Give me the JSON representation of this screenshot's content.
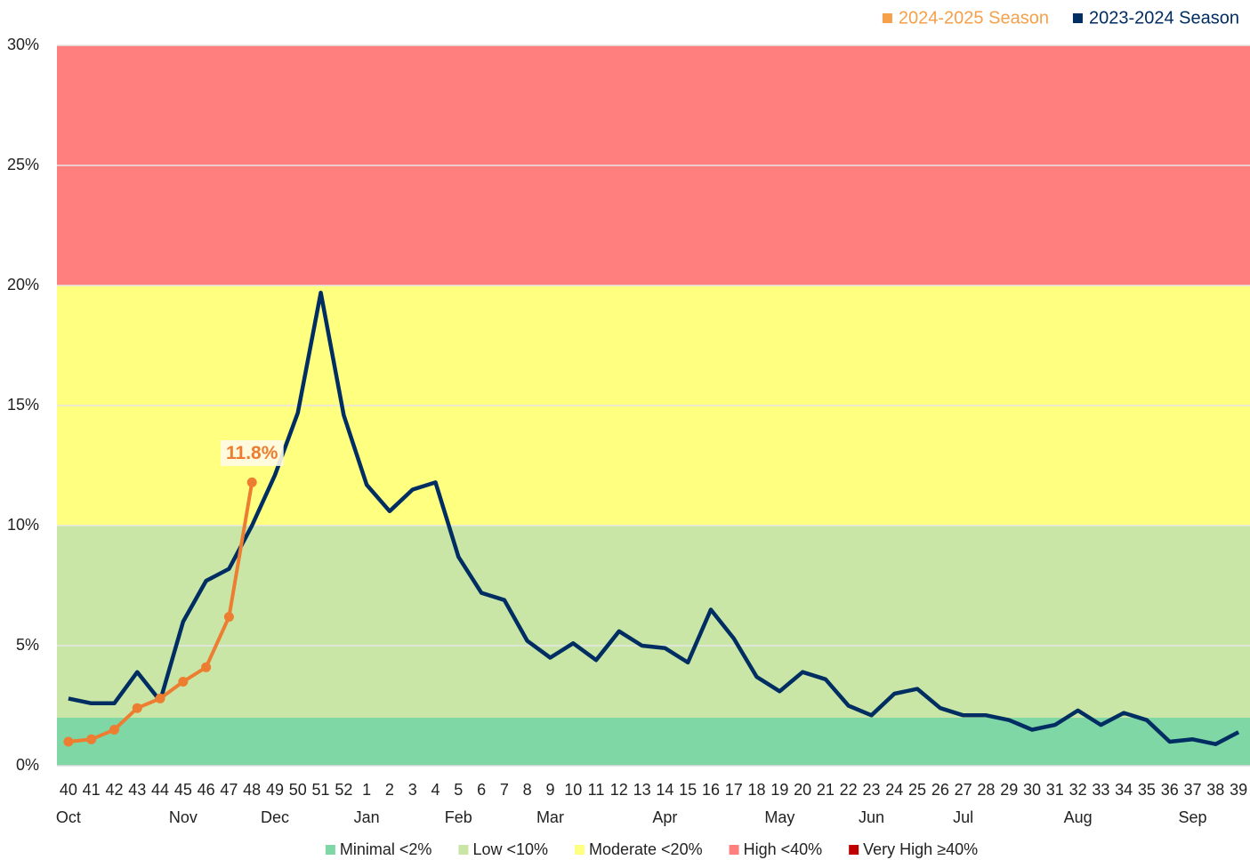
{
  "chart_data": {
    "type": "line",
    "categories": [
      "40",
      "41",
      "42",
      "43",
      "44",
      "45",
      "46",
      "47",
      "48",
      "49",
      "50",
      "51",
      "52",
      "1",
      "2",
      "3",
      "4",
      "5",
      "6",
      "7",
      "8",
      "9",
      "10",
      "11",
      "12",
      "13",
      "14",
      "15",
      "16",
      "17",
      "18",
      "19",
      "20",
      "21",
      "22",
      "23",
      "24",
      "25",
      "26",
      "27",
      "28",
      "29",
      "30",
      "31",
      "32",
      "33",
      "34",
      "35",
      "36",
      "37",
      "38",
      "39"
    ],
    "month_labels": [
      "Oct",
      null,
      null,
      null,
      null,
      "Nov",
      null,
      null,
      null,
      "Dec",
      null,
      null,
      null,
      "Jan",
      null,
      null,
      null,
      "Feb",
      null,
      null,
      null,
      "Mar",
      null,
      null,
      null,
      null,
      "Apr",
      null,
      null,
      null,
      null,
      "May",
      null,
      null,
      null,
      "Jun",
      null,
      null,
      null,
      "Jul",
      null,
      null,
      null,
      null,
      "Aug",
      null,
      null,
      null,
      null,
      "Sep",
      null,
      null,
      null
    ],
    "series": [
      {
        "name": "2024-2025 Season",
        "color": "#ed7d31",
        "legend_color": "#f5a04a",
        "marker": true,
        "values": [
          1.0,
          1.1,
          1.5,
          2.4,
          2.8,
          3.5,
          4.1,
          6.2,
          11.8,
          null,
          null,
          null,
          null,
          null,
          null,
          null,
          null,
          null,
          null,
          null,
          null,
          null,
          null,
          null,
          null,
          null,
          null,
          null,
          null,
          null,
          null,
          null,
          null,
          null,
          null,
          null,
          null,
          null,
          null,
          null,
          null,
          null,
          null,
          null,
          null,
          null,
          null,
          null,
          null,
          null,
          null,
          null
        ],
        "value_labels": [
          null,
          null,
          null,
          null,
          null,
          null,
          null,
          null,
          "11.8%",
          null,
          null,
          null,
          null,
          null,
          null,
          null,
          null,
          null,
          null,
          null,
          null,
          null,
          null,
          null,
          null,
          null,
          null,
          null,
          null,
          null,
          null,
          null,
          null,
          null,
          null,
          null,
          null,
          null,
          null,
          null,
          null,
          null,
          null,
          null,
          null,
          null,
          null,
          null,
          null,
          null,
          null,
          null
        ]
      },
      {
        "name": "2023-2024 Season",
        "color": "#002d62",
        "legend_color": "#002d62",
        "marker": false,
        "values": [
          2.8,
          2.6,
          2.6,
          3.9,
          2.7,
          6.0,
          7.7,
          8.2,
          10.0,
          12.1,
          14.7,
          19.7,
          14.6,
          11.7,
          10.6,
          11.5,
          11.8,
          8.7,
          7.2,
          6.9,
          5.2,
          4.5,
          5.1,
          4.4,
          5.6,
          5.0,
          4.9,
          4.3,
          6.5,
          5.3,
          3.7,
          3.1,
          3.9,
          3.6,
          2.5,
          2.1,
          3.0,
          3.2,
          2.4,
          2.1,
          2.1,
          1.9,
          1.5,
          1.7,
          2.3,
          1.7,
          2.2,
          1.9,
          1.0,
          1.1,
          0.9,
          1.4
        ]
      }
    ],
    "bands": [
      {
        "label": "Minimal <2%",
        "color": "#7fd7a6",
        "lower": 0
      },
      {
        "label": "Low <10%",
        "color": "#c9e6a6",
        "lower": 2
      },
      {
        "label": "Moderate <20%",
        "color": "#ffff80",
        "lower": 10
      },
      {
        "label": "High <40%",
        "color": "#ff7f7f",
        "lower": 20
      },
      {
        "label": "Very High ≥40%",
        "color": "#c00000",
        "lower": 40
      }
    ],
    "ylim": [
      0,
      30
    ],
    "yticks": [
      {
        "value": 0,
        "label": "0%"
      },
      {
        "value": 5,
        "label": "5%"
      },
      {
        "value": 10,
        "label": "10%"
      },
      {
        "value": 15,
        "label": "15%"
      },
      {
        "value": 20,
        "label": "20%"
      },
      {
        "value": 25,
        "label": "25%"
      },
      {
        "value": 30,
        "label": "30%"
      }
    ],
    "grid": true
  }
}
